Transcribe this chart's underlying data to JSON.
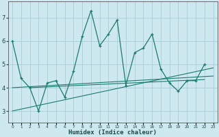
{
  "title": "",
  "xlabel": "Humidex (Indice chaleur)",
  "background_color": "#cde8ee",
  "grid_color": "#aacdd6",
  "line_color": "#1a7a6e",
  "x_data": [
    0,
    1,
    2,
    3,
    4,
    5,
    6,
    7,
    8,
    9,
    10,
    11,
    12,
    13,
    14,
    15,
    16,
    17,
    18,
    19,
    20,
    21,
    22,
    23
  ],
  "y_main": [
    6.0,
    4.4,
    4.0,
    3.0,
    4.2,
    4.3,
    3.6,
    4.7,
    6.2,
    7.3,
    5.8,
    6.3,
    6.9,
    4.1,
    5.5,
    5.7,
    6.3,
    4.8,
    4.2,
    3.85,
    4.3,
    4.3,
    5.0,
    null
  ],
  "y_trend1_x": [
    0,
    23
  ],
  "y_trend1_y": [
    4.0,
    4.5
  ],
  "y_trend2_x": [
    0,
    23
  ],
  "y_trend2_y": [
    3.0,
    4.85
  ],
  "y_trend3_x": [
    2,
    22
  ],
  "y_trend3_y": [
    4.0,
    4.35
  ],
  "yticks": [
    3,
    4,
    5,
    6,
    7
  ],
  "ylim": [
    2.5,
    7.7
  ],
  "xlim": [
    -0.5,
    23.5
  ]
}
